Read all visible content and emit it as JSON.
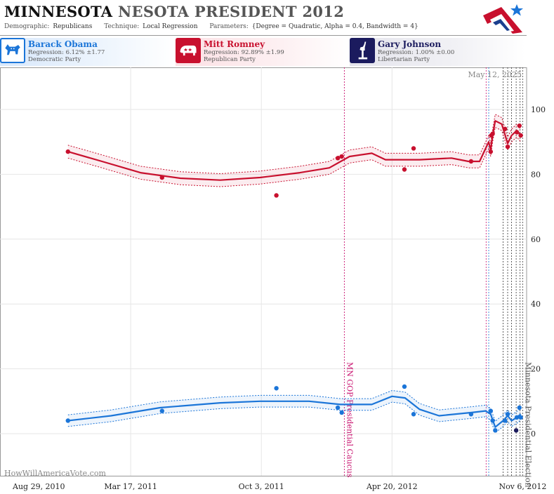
{
  "header": {
    "title_part1": "MINNESOTA",
    "title_part2": "NESOTA PRESIDENT",
    "title_part3": "2012",
    "demographic_label": "Demographic:",
    "demographic_value": "Republicans",
    "technique_label": "Technique:",
    "technique_value": "Local Regression",
    "parameters_label": "Parameters:",
    "parameters_value": "{Degree = Quadratic, Alpha = 0.4, Bandwidth = 4}"
  },
  "candidates": [
    {
      "name": "Barack Obama",
      "regression": "Regression: 6.12% ±1.77",
      "party": "Democratic Party",
      "color": "#1b75d8",
      "icon": "donkey-icon"
    },
    {
      "name": "Mitt Romney",
      "regression": "Regression: 92.89% ±1.99",
      "party": "Republican Party",
      "color": "#c8102e",
      "icon": "elephant-icon"
    },
    {
      "name": "Gary Johnson",
      "regression": "Regression: 1.00% ±0.00",
      "party": "Libertarian Party",
      "color": "#1b1b5e",
      "icon": "statue-of-liberty-icon"
    }
  ],
  "watermark": "HowWillAmericaVote.com",
  "date_stamp": "May 12, 2025",
  "colors": {
    "obama": "#1b75d8",
    "romney": "#c8102e",
    "johnson": "#1b1b5e",
    "caucus_line": "#c8106e",
    "grid": "#e6e6e6"
  },
  "chart_data": {
    "type": "scatter",
    "x_type": "date",
    "xlim": [
      "2010-08-29",
      "2012-11-12"
    ],
    "ylim": [
      -13,
      113
    ],
    "x_ticks": [
      {
        "date": "2010-08-29",
        "label": "Aug 29, 2010"
      },
      {
        "date": "2011-03-17",
        "label": "Mar 17, 2011"
      },
      {
        "date": "2011-10-03",
        "label": "Oct 3, 2011"
      },
      {
        "date": "2012-04-20",
        "label": "Apr 20, 2012"
      },
      {
        "date": "2012-11-06",
        "label": "Nov 6, 2012"
      }
    ],
    "y_ticks": [
      0,
      20,
      40,
      60,
      80,
      100
    ],
    "grid": true,
    "annotations": [
      {
        "date": "2012-02-07",
        "label": "MN GOP Presidential Caucus",
        "color": "#c8106e"
      },
      {
        "date": "2012-11-06",
        "label": "Minnesota Presidential Election",
        "color": "#555555"
      }
    ],
    "poll_lines": [
      {
        "date": "2012-09-11",
        "color": "#c8106e"
      },
      {
        "date": "2012-09-15",
        "color": "#1b75d8"
      },
      {
        "date": "2012-10-07",
        "color": "#333333"
      },
      {
        "date": "2012-10-14",
        "color": "#333333"
      },
      {
        "date": "2012-10-20",
        "color": "#333333"
      },
      {
        "date": "2012-10-27",
        "color": "#333333"
      },
      {
        "date": "2012-11-02",
        "color": "#333333"
      }
    ],
    "series": [
      {
        "name": "Mitt Romney",
        "color": "#c8102e",
        "points": [
          {
            "x": "2010-12-11",
            "y": 87
          },
          {
            "x": "2011-05-04",
            "y": 79
          },
          {
            "x": "2011-10-26",
            "y": 73.5
          },
          {
            "x": "2012-01-28",
            "y": 85
          },
          {
            "x": "2012-02-03",
            "y": 85.5
          },
          {
            "x": "2012-05-09",
            "y": 81.5
          },
          {
            "x": "2012-05-23",
            "y": 88
          },
          {
            "x": "2012-08-19",
            "y": 84
          },
          {
            "x": "2012-09-18",
            "y": 87
          },
          {
            "x": "2012-09-19",
            "y": 92
          },
          {
            "x": "2012-09-21",
            "y": 92.5
          },
          {
            "x": "2012-10-10",
            "y": 94
          },
          {
            "x": "2012-10-14",
            "y": 88.5
          },
          {
            "x": "2012-10-28",
            "y": 93
          },
          {
            "x": "2012-11-01",
            "y": 95
          },
          {
            "x": "2012-11-03",
            "y": 92
          }
        ],
        "trend": [
          {
            "x": "2010-12-11",
            "y": 87
          },
          {
            "x": "2011-02-01",
            "y": 84
          },
          {
            "x": "2011-04-01",
            "y": 80.5
          },
          {
            "x": "2011-06-01",
            "y": 78.8
          },
          {
            "x": "2011-08-01",
            "y": 78.2
          },
          {
            "x": "2011-10-01",
            "y": 79
          },
          {
            "x": "2011-12-01",
            "y": 80.5
          },
          {
            "x": "2012-01-15",
            "y": 82
          },
          {
            "x": "2012-02-15",
            "y": 85.5
          },
          {
            "x": "2012-03-20",
            "y": 86.5
          },
          {
            "x": "2012-04-10",
            "y": 84.5
          },
          {
            "x": "2012-06-01",
            "y": 84.5
          },
          {
            "x": "2012-07-20",
            "y": 85
          },
          {
            "x": "2012-08-15",
            "y": 84
          },
          {
            "x": "2012-09-01",
            "y": 84
          },
          {
            "x": "2012-09-15",
            "y": 90
          },
          {
            "x": "2012-09-18",
            "y": 87.5
          },
          {
            "x": "2012-09-21",
            "y": 92
          },
          {
            "x": "2012-09-25",
            "y": 96.5
          },
          {
            "x": "2012-10-05",
            "y": 95.5
          },
          {
            "x": "2012-10-14",
            "y": 89.5
          },
          {
            "x": "2012-10-20",
            "y": 92
          },
          {
            "x": "2012-10-28",
            "y": 93.5
          },
          {
            "x": "2012-11-03",
            "y": 92
          }
        ],
        "band_width": 2
      },
      {
        "name": "Barack Obama",
        "color": "#1b75d8",
        "points": [
          {
            "x": "2010-12-11",
            "y": 4
          },
          {
            "x": "2011-05-04",
            "y": 7
          },
          {
            "x": "2011-10-26",
            "y": 14
          },
          {
            "x": "2012-01-28",
            "y": 8
          },
          {
            "x": "2012-02-03",
            "y": 6.5
          },
          {
            "x": "2012-05-09",
            "y": 14.5
          },
          {
            "x": "2012-05-23",
            "y": 6
          },
          {
            "x": "2012-08-19",
            "y": 6
          },
          {
            "x": "2012-09-18",
            "y": 7
          },
          {
            "x": "2012-09-21",
            "y": 4
          },
          {
            "x": "2012-09-25",
            "y": 1
          },
          {
            "x": "2012-10-10",
            "y": 4
          },
          {
            "x": "2012-10-14",
            "y": 6
          },
          {
            "x": "2012-10-28",
            "y": 5
          },
          {
            "x": "2012-11-01",
            "y": 8
          },
          {
            "x": "2012-11-03",
            "y": 5
          }
        ],
        "trend": [
          {
            "x": "2010-12-11",
            "y": 4
          },
          {
            "x": "2011-02-15",
            "y": 5.5
          },
          {
            "x": "2011-05-01",
            "y": 8
          },
          {
            "x": "2011-08-01",
            "y": 9.5
          },
          {
            "x": "2011-10-01",
            "y": 10
          },
          {
            "x": "2011-12-15",
            "y": 10
          },
          {
            "x": "2012-02-01",
            "y": 9
          },
          {
            "x": "2012-03-20",
            "y": 9
          },
          {
            "x": "2012-04-20",
            "y": 11.5
          },
          {
            "x": "2012-05-10",
            "y": 11
          },
          {
            "x": "2012-06-01",
            "y": 7.5
          },
          {
            "x": "2012-07-01",
            "y": 5.5
          },
          {
            "x": "2012-08-20",
            "y": 6.5
          },
          {
            "x": "2012-09-10",
            "y": 7
          },
          {
            "x": "2012-09-18",
            "y": 6
          },
          {
            "x": "2012-09-25",
            "y": 2
          },
          {
            "x": "2012-10-07",
            "y": 4
          },
          {
            "x": "2012-10-14",
            "y": 5.5
          },
          {
            "x": "2012-10-20",
            "y": 4
          },
          {
            "x": "2012-10-28",
            "y": 5
          },
          {
            "x": "2012-11-03",
            "y": 6
          }
        ],
        "band_width": 1.8
      },
      {
        "name": "Gary Johnson",
        "color": "#1b1b5e",
        "points": [
          {
            "x": "2012-10-27",
            "y": 1
          }
        ]
      }
    ]
  }
}
